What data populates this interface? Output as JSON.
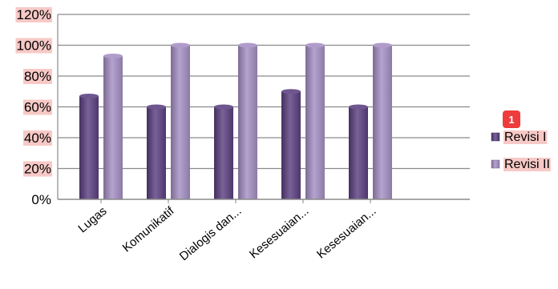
{
  "chart_data": {
    "type": "bar",
    "categories": [
      "Lugas",
      "Komunikatif",
      "Dialogis dan...",
      "Kesesuaian...",
      "Kesesuaian..."
    ],
    "series": [
      {
        "name": "Revisi I",
        "values": [
          67,
          60,
          60,
          70,
          60
        ],
        "color": "#5b3f80"
      },
      {
        "name": "Revisi II",
        "values": [
          93,
          100,
          100,
          100,
          100
        ],
        "color": "#a58fc4"
      }
    ],
    "ylim": [
      0,
      120
    ],
    "yticks": [
      "0%",
      "20%",
      "40%",
      "60%",
      "80%",
      "100%",
      "120%"
    ],
    "grid": true,
    "legend_position": "right",
    "badge": "1",
    "badge_color": "#ee3b3b",
    "label_highlight_color": "#f7c9c6"
  }
}
